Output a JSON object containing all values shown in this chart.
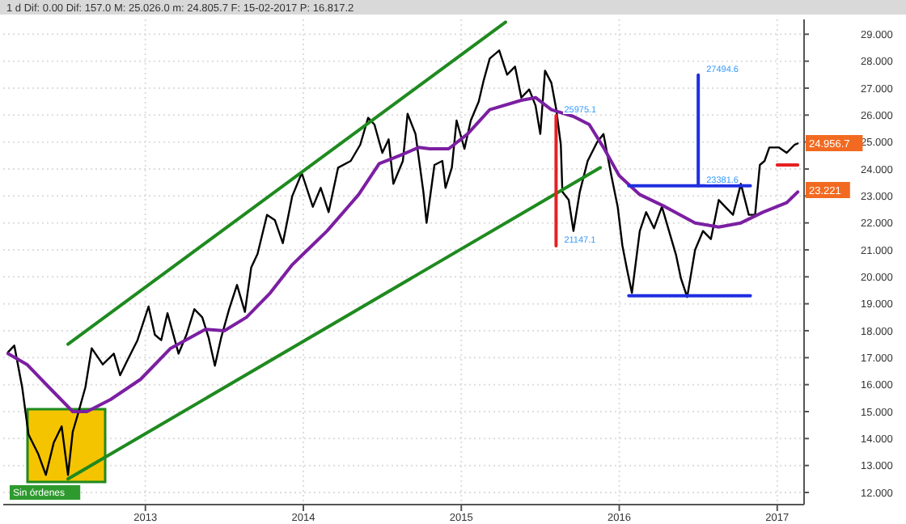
{
  "chart_data": {
    "type": "line",
    "subtitle": "1 d  Dif: 0.00  Dif: 157.0  M: 25.026.0  m: 24.805.7  F: 15-02-2017  P: 16.817.2",
    "xlim": [
      2012.1,
      2017.17
    ],
    "xticks": [
      2013,
      2014,
      2015,
      2016,
      2017
    ],
    "ylim": [
      11.55,
      29.55
    ],
    "yticks": [
      {
        "value": 12,
        "label": "12.000"
      },
      {
        "value": 13,
        "label": "13.000"
      },
      {
        "value": 14,
        "label": "14.000"
      },
      {
        "value": 15,
        "label": "15.000"
      },
      {
        "value": 16,
        "label": "16.000"
      },
      {
        "value": 17,
        "label": "17.000"
      },
      {
        "value": 18,
        "label": "18.000"
      },
      {
        "value": 19,
        "label": "19.000"
      },
      {
        "value": 20,
        "label": "20.000"
      },
      {
        "value": 21,
        "label": "21.000"
      },
      {
        "value": 22,
        "label": "22.000"
      },
      {
        "value": 23,
        "label": "23.000"
      },
      {
        "value": 24,
        "label": "24.000"
      },
      {
        "value": 25,
        "label": "25.000"
      },
      {
        "value": 26,
        "label": "26.000"
      },
      {
        "value": 27,
        "label": "27.000"
      },
      {
        "value": 28,
        "label": "28.000"
      },
      {
        "value": 29,
        "label": "29.000"
      }
    ],
    "grid": true,
    "marker": "none",
    "line_style": "solid",
    "series": [
      {
        "color": "#000000",
        "x": [
          2012.13,
          2012.17,
          2012.22,
          2012.26,
          2012.32,
          2012.37,
          2012.42,
          2012.47,
          2012.51,
          2012.54,
          2012.57,
          2012.62,
          2012.66,
          2012.73,
          2012.8,
          2012.84,
          2012.89,
          2012.95,
          2013.02,
          2013.06,
          2013.1,
          2013.14,
          2013.21,
          2013.26,
          2013.31,
          2013.36,
          2013.4,
          2013.44,
          2013.48,
          2013.53,
          2013.58,
          2013.63,
          2013.67,
          2013.71,
          2013.77,
          2013.82,
          2013.87,
          2013.93,
          2013.99,
          2014.06,
          2014.11,
          2014.16,
          2014.22,
          2014.3,
          2014.36,
          2014.41,
          2014.45,
          2014.5,
          2014.54,
          2014.57,
          2014.63,
          2014.66,
          2014.71,
          2014.76,
          2014.78,
          2014.83,
          2014.88,
          2014.9,
          2014.94,
          2014.97,
          2015.02,
          2015.06,
          2015.11,
          2015.14,
          2015.18,
          2015.24,
          2015.29,
          2015.34,
          2015.38,
          2015.43,
          2015.47,
          2015.5,
          2015.53,
          2015.57,
          2015.6,
          2015.63,
          2015.64,
          2015.68,
          2015.71,
          2015.75,
          2015.8,
          2015.86,
          2015.9,
          2015.95,
          2015.99,
          2016.02,
          2016.05,
          2016.08,
          2016.13,
          2016.17,
          2016.22,
          2016.27,
          2016.31,
          2016.36,
          2016.39,
          2016.43,
          2016.48,
          2016.53,
          2016.58,
          2016.63,
          2016.67,
          2016.72,
          2016.77,
          2016.82,
          2016.86,
          2016.89,
          2016.92,
          2016.95,
          2017.01,
          2017.06,
          2017.11,
          2017.13
        ],
        "values": [
          17.2,
          17.45,
          15.9,
          14.15,
          13.45,
          12.65,
          13.85,
          14.45,
          12.65,
          14.25,
          14.85,
          15.9,
          17.35,
          16.75,
          17.15,
          16.35,
          16.95,
          17.65,
          18.9,
          17.85,
          17.65,
          18.65,
          17.15,
          17.85,
          18.8,
          18.5,
          17.75,
          16.7,
          17.75,
          18.8,
          19.7,
          18.7,
          20.35,
          20.85,
          22.3,
          22.1,
          21.25,
          23,
          23.85,
          22.6,
          23.3,
          22.4,
          24.05,
          24.3,
          24.9,
          25.9,
          25.65,
          24.6,
          25.1,
          23.45,
          24.3,
          26.05,
          25.3,
          23.15,
          22,
          24.15,
          24.3,
          23.3,
          24.05,
          25.8,
          24.75,
          25.8,
          26.5,
          27.25,
          28.1,
          28.4,
          27.5,
          27.8,
          26.65,
          26.95,
          26.35,
          25.3,
          27.65,
          27.2,
          26.25,
          24.9,
          23.15,
          22.85,
          21.7,
          23.15,
          24.3,
          25,
          25.3,
          23.75,
          22.6,
          21.15,
          20.25,
          19.4,
          21.7,
          22.4,
          21.8,
          22.6,
          21.8,
          20.8,
          19.95,
          19.25,
          21,
          21.7,
          21.4,
          22.85,
          22.6,
          22.3,
          23.45,
          22.3,
          22.3,
          24.15,
          24.3,
          24.8,
          24.8,
          24.6,
          24.9,
          24.95
        ]
      },
      {
        "color": "#7b1fa2",
        "x": [
          2012.13,
          2012.25,
          2012.39,
          2012.54,
          2012.63,
          2012.78,
          2012.97,
          2013.16,
          2013.38,
          2013.5,
          2013.64,
          2013.79,
          2013.93,
          2014.0,
          2014.15,
          2014.35,
          2014.48,
          2014.61,
          2014.73,
          2014.8,
          2014.92,
          2015.04,
          2015.18,
          2015.38,
          2015.47,
          2015.57,
          2015.71,
          2015.81,
          2015.9,
          2016.0,
          2016.13,
          2016.29,
          2016.48,
          2016.63,
          2016.77,
          2016.91,
          2017.06,
          2017.13
        ],
        "values": [
          17.15,
          16.75,
          15.9,
          15,
          15,
          15.45,
          16.2,
          17.35,
          18.05,
          18,
          18.5,
          19.4,
          20.45,
          20.85,
          21.7,
          23.05,
          24.2,
          24.5,
          24.8,
          24.75,
          24.75,
          25.3,
          26.2,
          26.55,
          26.65,
          26.2,
          25.95,
          25.65,
          24.8,
          23.75,
          23.05,
          22.6,
          22,
          21.85,
          22,
          22.4,
          22.75,
          23.15
        ]
      },
      {
        "color": "#1f8a1f",
        "x": [
          2012.51,
          2015.28
        ],
        "values": [
          17.5,
          29.45
        ]
      },
      {
        "color": "#1f8a1f",
        "x": [
          2012.51,
          2015.88
        ],
        "values": [
          12.5,
          24.05
        ]
      },
      {
        "color": "#e52020",
        "x": [
          2015.6,
          2015.6
        ],
        "values": [
          25.98,
          21.15
        ]
      },
      {
        "color": "#e52020",
        "x": [
          2017.0,
          2017.13
        ],
        "values": [
          24.15,
          24.15
        ]
      },
      {
        "color": "#1f2fe0",
        "x": [
          2016.06,
          2016.83
        ],
        "values": [
          23.38,
          23.38
        ]
      },
      {
        "color": "#1f2fe0",
        "x": [
          2016.5,
          2016.5
        ],
        "values": [
          23.38,
          27.49
        ]
      },
      {
        "color": "#1f2fe0",
        "x": [
          2016.06,
          2016.83
        ],
        "values": [
          19.3,
          19.3
        ]
      }
    ],
    "annotations": [
      {
        "text": "25975.1",
        "x": 2015.6,
        "y": 25.98
      },
      {
        "text": "21147.1",
        "x": 2015.6,
        "y": 21.15
      },
      {
        "text": "27494.6",
        "x": 2016.5,
        "y": 27.49
      },
      {
        "text": "23381.6",
        "x": 2016.5,
        "y": 23.38
      },
      {
        "text": "24.956.7",
        "x": 2017.17,
        "y": 24.96
      },
      {
        "text": "23.221",
        "x": 2017.17,
        "y": 23.22
      },
      "Sin órdenes"
    ]
  }
}
